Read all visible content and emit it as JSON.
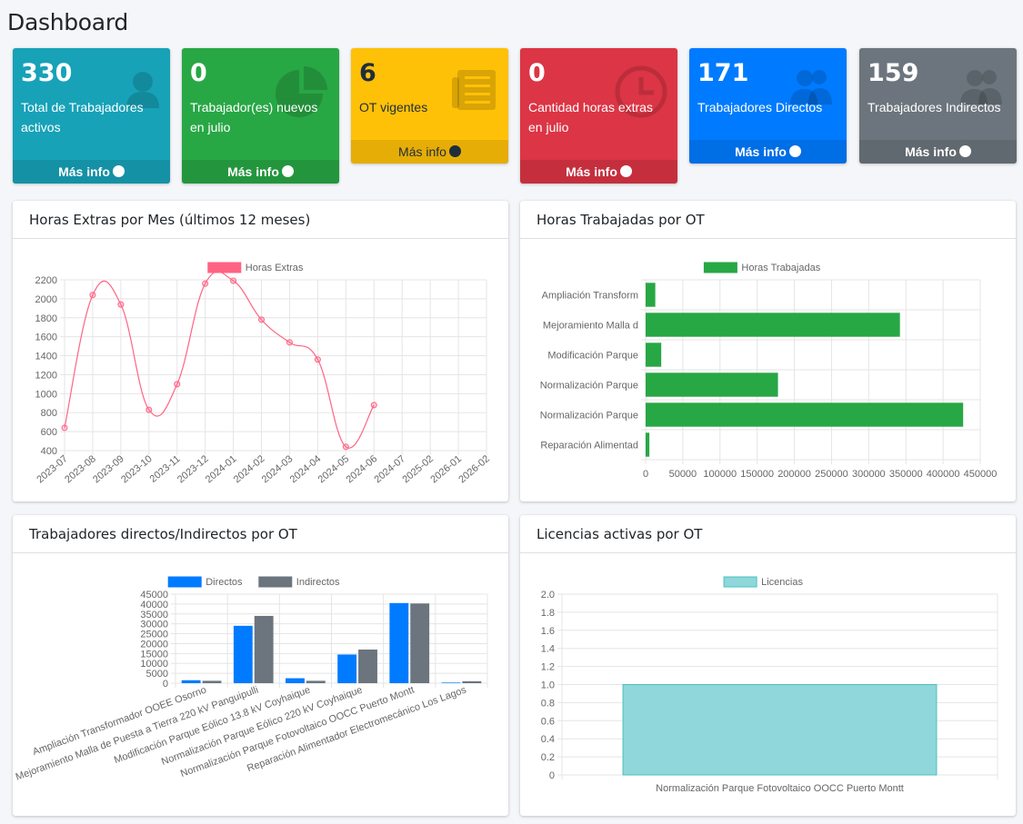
{
  "page": {
    "title": "Dashboard"
  },
  "info_boxes": [
    {
      "number": "330",
      "label": "Total de Trabajadores activos",
      "footer": "Más info",
      "color": "#17a2b8",
      "icon": "user-icon"
    },
    {
      "number": "0",
      "label": "Trabajador(es) nuevos en julio",
      "footer": "Más info",
      "color": "#28a745",
      "icon": "pie-chart-icon"
    },
    {
      "number": "6",
      "label": "OT vigentes",
      "footer": "Más info",
      "color": "#ffc107",
      "icon": "newspaper-icon"
    },
    {
      "number": "0",
      "label": "Cantidad horas extras en julio",
      "footer": "Más info",
      "color": "#dc3545",
      "icon": "clock-icon"
    },
    {
      "number": "171",
      "label": "Trabajadores Directos",
      "footer": "Más info",
      "color": "#007bff",
      "icon": "users-icon"
    },
    {
      "number": "159",
      "label": "Trabajadores Indirectos",
      "footer": "Más info",
      "color": "#6c757d",
      "icon": "users-icon"
    }
  ],
  "cards": {
    "overtime": {
      "title": "Horas Extras por Mes (últimos 12 meses)"
    },
    "hours_ot": {
      "title": "Horas Trabajadas por OT"
    },
    "workers_ot": {
      "title": "Trabajadores directos/Indirectos por OT"
    },
    "licenses": {
      "title": "Licencias activas por OT"
    }
  },
  "chart_data": [
    {
      "type": "line",
      "title": "",
      "categories": [
        "2023-07",
        "2023-08",
        "2023-09",
        "2023-10",
        "2023-11",
        "2023-12",
        "2024-01",
        "2024-02",
        "2024-03",
        "2024-04",
        "2024-05",
        "2024-06",
        "2024-07",
        "2025-02",
        "2026-01",
        "2026-02"
      ],
      "series": [
        {
          "name": "Horas Extras",
          "color": "#ff6384",
          "values": [
            640,
            2040,
            1940,
            830,
            1100,
            2160,
            2190,
            1780,
            1540,
            1360,
            440,
            880,
            null,
            null,
            null,
            null
          ]
        }
      ],
      "ylim": [
        400,
        2200
      ],
      "yticks": [
        400,
        600,
        800,
        1000,
        1200,
        1400,
        1600,
        1800,
        2000,
        2200
      ],
      "legend": "top",
      "grid": true
    },
    {
      "type": "bar",
      "orientation": "horizontal",
      "categories": [
        "Ampliación Transform",
        "Mejoramiento Malla d",
        "Modificación Parque",
        "Normalización Parque",
        "Normalización Parque",
        "Reparación Alimentad"
      ],
      "series": [
        {
          "name": "Horas Trabajadas",
          "color": "#28a745",
          "values": [
            13000,
            342000,
            21000,
            178000,
            427000,
            5000
          ]
        }
      ],
      "xlim": [
        0,
        450000
      ],
      "xticks": [
        0,
        50000,
        100000,
        150000,
        200000,
        250000,
        300000,
        350000,
        400000,
        450000
      ],
      "legend": "top",
      "grid": true
    },
    {
      "type": "bar",
      "categories": [
        "Ampliación Transformador OOEE Osorno",
        "Mejoramiento Malla de Puesta a Tierra 220 kV Panguipulli",
        "Modificación Parque Eólico 13.8 kV Coyhaique",
        "Normalización Parque Eólico 220 kV Coyhaique",
        "Normalización Parque Fotovoltaico OOCC Puerto Montt",
        "Reparación Alimentador Electromecánico Los Lagos"
      ],
      "series": [
        {
          "name": "Directos",
          "color": "#007bff",
          "values": [
            1500,
            29000,
            2500,
            14500,
            40500,
            300
          ]
        },
        {
          "name": "Indirectos",
          "color": "#6c757d",
          "values": [
            1200,
            34000,
            1200,
            17000,
            40300,
            1000
          ]
        }
      ],
      "ylim": [
        0,
        45000
      ],
      "yticks": [
        0,
        5000,
        10000,
        15000,
        20000,
        25000,
        30000,
        35000,
        40000,
        45000
      ],
      "legend": "top",
      "grid": true
    },
    {
      "type": "bar",
      "categories": [
        "Normalización Parque Fotovoltaico OOCC Puerto Montt"
      ],
      "series": [
        {
          "name": "Licencias",
          "color": "#8fd7da",
          "border": "#4bc0c0",
          "values": [
            1
          ]
        }
      ],
      "ylim": [
        0,
        2
      ],
      "yticks": [
        "0",
        "0.2",
        "0.4",
        "0.6",
        "0.8",
        "1.0",
        "1.2",
        "1.4",
        "1.6",
        "1.8",
        "2.0"
      ],
      "legend": "top",
      "grid": true
    }
  ]
}
